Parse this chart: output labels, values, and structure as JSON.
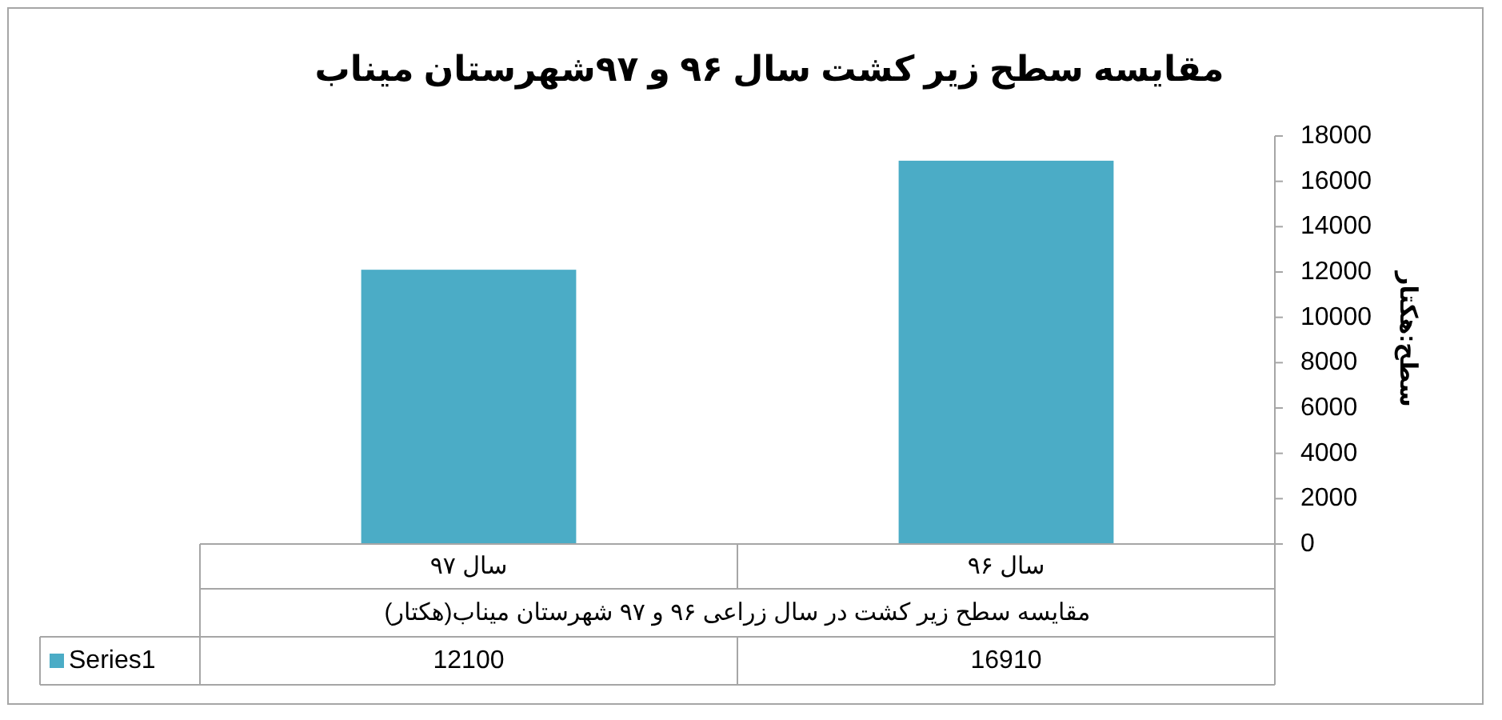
{
  "chart_data": {
    "type": "bar",
    "title": "مقایسه سطح زیر کشت سال ۹۶ و ۹۷شهرستان میناب",
    "xlabel": "مقایسه سطح زیر کشت در سال زراعی ۹۶ و ۹۷ شهرستان میناب(هکتار)",
    "ylabel": "سطح:هکتار",
    "categories": [
      "سال ۹۷",
      "سال ۹۶"
    ],
    "series": [
      {
        "name": "Series1",
        "color": "#4bacc6",
        "values": [
          12100,
          16910
        ]
      }
    ],
    "ylim": [
      0,
      18000
    ],
    "yticks": [
      0,
      2000,
      4000,
      6000,
      8000,
      10000,
      12000,
      14000,
      16000,
      18000
    ],
    "data_labels": true,
    "legend": "bottom",
    "grid": false
  }
}
